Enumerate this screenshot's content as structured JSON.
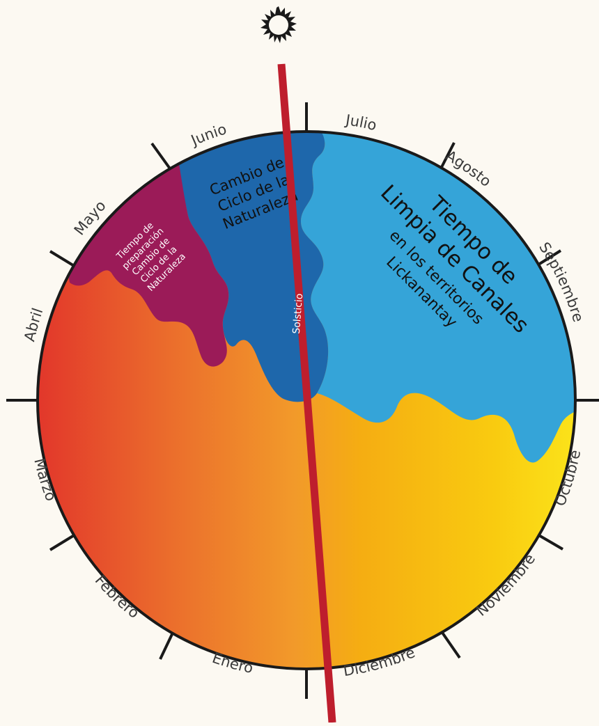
{
  "months": {
    "enero": "Enero",
    "febrero": "Febrero",
    "marzo": "Marzo",
    "abril": "Abril",
    "mayo": "Mayo",
    "junio": "Junio",
    "julio": "Julio",
    "agosto": "Agosto",
    "septiembre": "Septiembre",
    "octubre": "Octubre",
    "noviembre": "Noviembre",
    "diciembre": "Diciembre"
  },
  "regions": {
    "preparacion": [
      "Tiempo de",
      "preparación",
      "Cambio de",
      "Ciclo de la",
      "Naturaleza"
    ],
    "cambio": [
      "Cambio de",
      "Ciclo de la",
      "Naturaleza"
    ],
    "limpia_title": [
      "Tiempo de",
      "Limpia de Canales"
    ],
    "limpia_sub": [
      "en los territorios",
      "Lickanantay"
    ]
  },
  "solstice_label": "Solsticio",
  "colors": {
    "background": "#fcf9f2",
    "preparacion": "#9b1b58",
    "cambio": "#1e67ab",
    "limpia": "#35a4d8",
    "warm_left": "#e2372b",
    "warm_mid": "#f29a2a",
    "warm_right": "#fbe31a",
    "solstice_line": "#be1e2d"
  }
}
